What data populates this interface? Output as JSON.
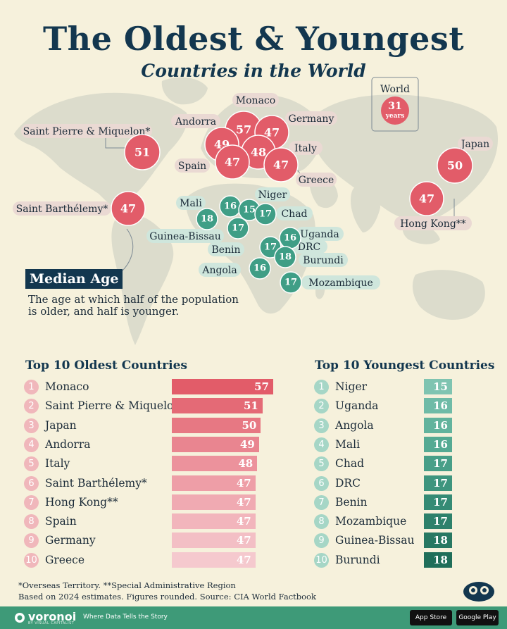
{
  "header": {
    "title": "The Oldest & Youngest",
    "subtitle": "Countries in the World"
  },
  "world": {
    "label": "World",
    "value": "31",
    "unit": "years"
  },
  "legend": {
    "title": "Median Age",
    "description": "The age at which half of the population is older, and half is younger."
  },
  "colors": {
    "old": "#e25c69",
    "young": "#3f9e86",
    "navy": "#13374f",
    "map_land": "#dcdccc"
  },
  "chart_data": {
    "type": "bar",
    "title": "The Oldest & Youngest",
    "subtitle": "Countries in the World",
    "ylabel": "",
    "xlabel": "",
    "oldest": {
      "heading": "Top 10 Oldest Countries",
      "ranks": [
        "1",
        "2",
        "3",
        "4",
        "5",
        "6",
        "7",
        "8",
        "9",
        "10"
      ],
      "categories": [
        "Monaco",
        "Saint Pierre & Miquelon*",
        "Japan",
        "Andorra",
        "Italy",
        "Saint Barthélemy*",
        "Hong Kong**",
        "Spain",
        "Germany",
        "Greece"
      ],
      "values": [
        57,
        51,
        50,
        49,
        48,
        47,
        47,
        47,
        47,
        47
      ]
    },
    "youngest": {
      "heading": "Top 10 Youngest Countries",
      "ranks": [
        "1",
        "2",
        "3",
        "4",
        "5",
        "6",
        "7",
        "8",
        "9",
        "10"
      ],
      "categories": [
        "Niger",
        "Uganda",
        "Angola",
        "Mali",
        "Chad",
        "DRC",
        "Benin",
        "Mozambique",
        "Guinea-Bissau",
        "Burundi"
      ],
      "values": [
        15,
        16,
        16,
        16,
        17,
        17,
        17,
        17,
        18,
        18
      ]
    }
  },
  "footer": {
    "note1": "*Overseas Territory. **Special Administrative Region",
    "note2": "Based on 2024 estimates. Figures rounded. Source: CIA World Factbook",
    "brand": "voronoi",
    "brand_sub": "BY VISUAL CAPITALIST",
    "tagline": "Where Data Tells the Story",
    "app_store": "App Store",
    "google_play": "Google Play"
  }
}
